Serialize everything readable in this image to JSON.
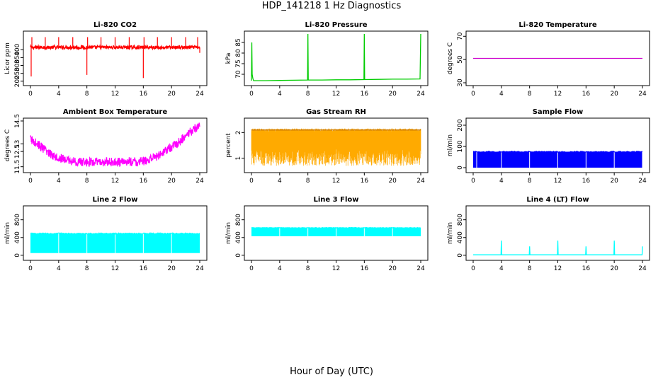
{
  "title": "HDP_141218  1 Hz Diagnostics",
  "xlabel": "Hour of Day (UTC)",
  "chart_data": [
    {
      "type": "line",
      "title": "Li-820 CO2",
      "ylabel": "Licor ppm",
      "color": "#ff0000",
      "xlim": [
        0,
        24
      ],
      "ylim": [
        190,
        500
      ],
      "xticks": [
        0,
        4,
        8,
        12,
        16,
        20,
        24
      ],
      "yticks": [
        200,
        250,
        300,
        350,
        400
      ],
      "baseline": 415,
      "band": 10,
      "spikes": [
        {
          "x": 0.1,
          "y": 230
        },
        {
          "x": 0.2,
          "y": 480
        },
        {
          "x": 2.1,
          "y": 480
        },
        {
          "x": 4.0,
          "y": 480
        },
        {
          "x": 6.0,
          "y": 480
        },
        {
          "x": 8.0,
          "y": 240
        },
        {
          "x": 8.1,
          "y": 480
        },
        {
          "x": 10.0,
          "y": 480
        },
        {
          "x": 12.0,
          "y": 480
        },
        {
          "x": 14.0,
          "y": 480
        },
        {
          "x": 16.0,
          "y": 220
        },
        {
          "x": 16.1,
          "y": 480
        },
        {
          "x": 18.0,
          "y": 480
        },
        {
          "x": 20.0,
          "y": 480
        },
        {
          "x": 22.0,
          "y": 480
        },
        {
          "x": 23.7,
          "y": 480
        },
        {
          "x": 24.0,
          "y": 380
        }
      ]
    },
    {
      "type": "line",
      "title": "Li-820 Pressure",
      "ylabel": "kPa",
      "color": "#00cc00",
      "xlim": [
        0,
        24
      ],
      "ylim": [
        66,
        89
      ],
      "xticks": [
        0,
        4,
        8,
        12,
        16,
        20,
        24
      ],
      "yticks": [
        70,
        75,
        80,
        85
      ],
      "series": [
        {
          "name": "pressure",
          "x": [
            0,
            0.05,
            0.1,
            0.2,
            0.3,
            0.5,
            2,
            4,
            6,
            7.95,
            8,
            8.05,
            10,
            12,
            14,
            15.95,
            16,
            16.05,
            18,
            20,
            22,
            23.9,
            24
          ],
          "y": [
            67,
            85,
            70,
            68,
            67,
            67,
            67,
            67.1,
            67.2,
            67.3,
            89,
            67.3,
            67.3,
            67.4,
            67.4,
            67.5,
            89,
            67.5,
            67.6,
            67.7,
            67.7,
            67.8,
            89
          ]
        }
      ]
    },
    {
      "type": "line",
      "title": "Li-820 Temperature",
      "ylabel": "degrees C",
      "color": "#cc00cc",
      "xlim": [
        0,
        24
      ],
      "ylim": [
        30,
        72
      ],
      "xticks": [
        0,
        4,
        8,
        12,
        16,
        20,
        24
      ],
      "yticks": [
        30,
        50,
        70
      ],
      "series": [
        {
          "name": "temperature",
          "x": [
            0,
            24
          ],
          "y": [
            51,
            51
          ]
        }
      ]
    },
    {
      "type": "line",
      "title": "Ambient Box Temperature",
      "ylabel": "degrees C",
      "color": "#ff00ff",
      "xlim": [
        0,
        24
      ],
      "ylim": [
        11.3,
        14.5
      ],
      "xticks": [
        0,
        4,
        8,
        12,
        16,
        20,
        24
      ],
      "yticks": [
        11.5,
        12.5,
        13.0,
        14.5
      ],
      "band": 0.3,
      "series": [
        {
          "name": "ambient",
          "x": [
            0,
            1,
            2,
            3,
            4,
            5,
            6,
            7,
            8,
            9,
            10,
            11,
            12,
            13,
            14,
            15,
            16,
            17,
            18,
            19,
            20,
            21,
            22,
            23,
            24
          ],
          "y": [
            13.3,
            13.0,
            12.6,
            12.3,
            12.1,
            11.95,
            11.85,
            11.8,
            11.8,
            11.8,
            11.8,
            11.8,
            11.8,
            11.8,
            11.85,
            11.8,
            11.85,
            12.0,
            12.2,
            12.5,
            12.8,
            13.1,
            13.5,
            13.9,
            14.2
          ]
        }
      ]
    },
    {
      "type": "line",
      "title": "Gas Stream RH",
      "ylabel": "percent",
      "color": "#ffaa00",
      "xlim": [
        0,
        24
      ],
      "ylim": [
        0.55,
        2.45
      ],
      "xticks": [
        0,
        4,
        8,
        12,
        16,
        20,
        24
      ],
      "yticks": [
        1.0,
        2.0
      ],
      "top": 2.1,
      "low_min": 0.7,
      "low_max": 1.35
    },
    {
      "type": "area",
      "title": "Sample Flow",
      "ylabel": "ml/min",
      "color": "#0000ff",
      "xlim": [
        0,
        24
      ],
      "ylim": [
        -10,
        220
      ],
      "xticks": [
        0,
        4,
        8,
        12,
        16,
        20,
        24
      ],
      "yticks": [
        0,
        100,
        200
      ],
      "band_low": 0,
      "band_high": 75,
      "gaps": [
        0.5,
        4.0,
        8.0,
        12.0,
        16.0,
        20.0,
        24.0
      ]
    },
    {
      "type": "area",
      "title": "Line 2 Flow",
      "ylabel": "ml/min",
      "color": "#00ffff",
      "xlim": [
        0,
        24
      ],
      "ylim": [
        -50,
        1050
      ],
      "xticks": [
        0,
        4,
        8,
        12,
        16,
        20,
        24
      ],
      "yticks": [
        0,
        400,
        800
      ],
      "band_low": 50,
      "band_high": 490,
      "gaps": [
        4.0,
        8.0,
        12.0,
        16.0,
        20.0
      ]
    },
    {
      "type": "area",
      "title": "Line 3 Flow",
      "ylabel": "ml/min",
      "color": "#00ffff",
      "xlim": [
        0,
        24
      ],
      "ylim": [
        -50,
        1050
      ],
      "xticks": [
        0,
        4,
        8,
        12,
        16,
        20,
        24
      ],
      "yticks": [
        0,
        400,
        800
      ],
      "band_low": 430,
      "band_high": 620,
      "gaps": [
        4.0,
        8.0,
        12.0,
        16.0,
        20.0
      ]
    },
    {
      "type": "line",
      "title": "Line 4 (LT) Flow",
      "ylabel": "ml/min",
      "color": "#00ffff",
      "xlim": [
        0,
        24
      ],
      "ylim": [
        -50,
        1050
      ],
      "xticks": [
        0,
        4,
        8,
        12,
        16,
        20,
        24
      ],
      "yticks": [
        0,
        400,
        800
      ],
      "series": [
        {
          "name": "line4",
          "x": [
            0,
            3.95,
            4.0,
            4.05,
            7.95,
            8.0,
            8.05,
            11.95,
            12.0,
            12.05,
            15.95,
            16.0,
            16.05,
            19.95,
            20.0,
            20.05,
            23.95,
            24.0
          ],
          "y": [
            10,
            10,
            330,
            10,
            10,
            200,
            10,
            10,
            330,
            10,
            10,
            200,
            10,
            10,
            330,
            10,
            10,
            200
          ]
        }
      ]
    }
  ]
}
